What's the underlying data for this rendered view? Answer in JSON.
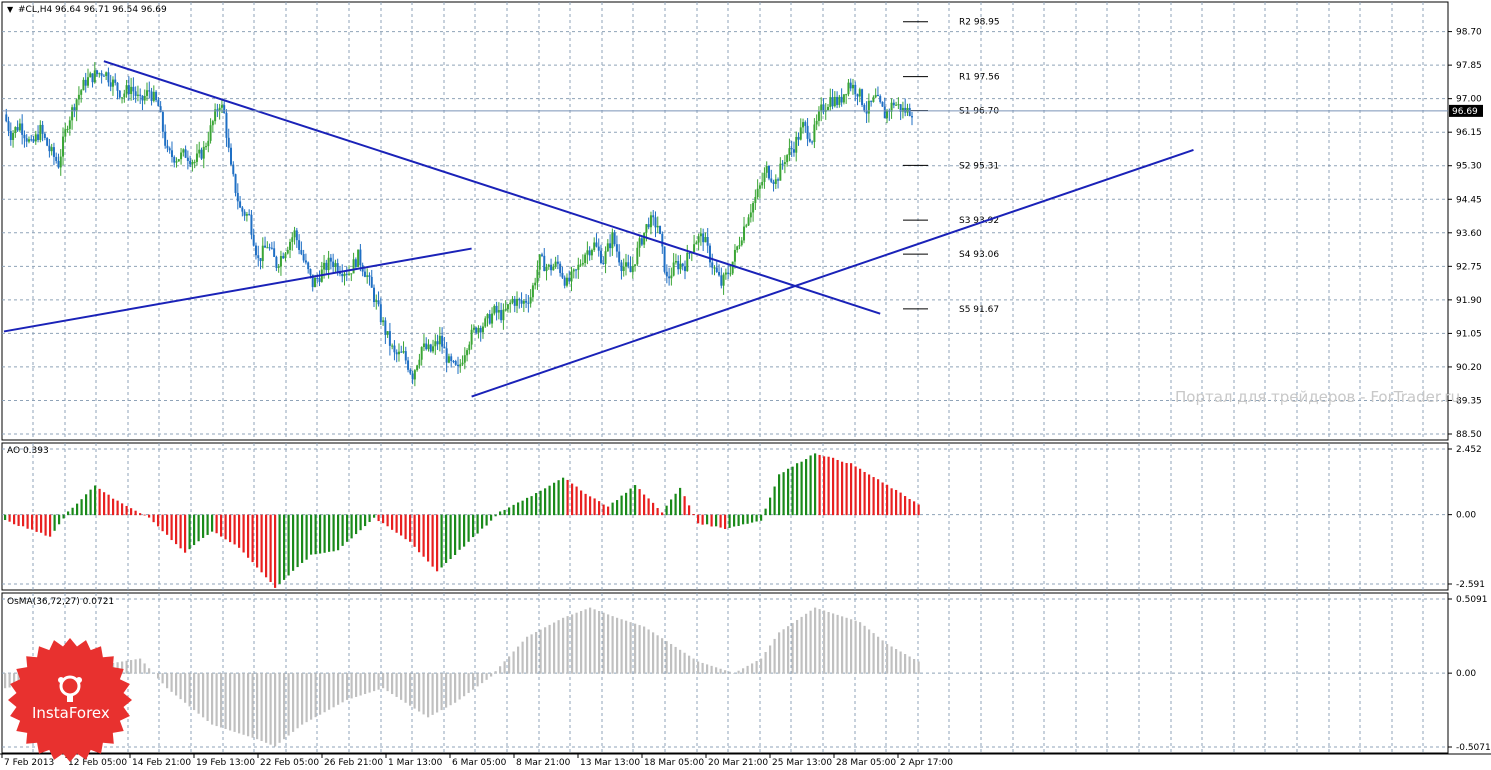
{
  "header": {
    "symbol_line": "#CL,H4  96.64 96.71 96.54 96.69"
  },
  "watermark": "Портал для трейдеров - ForTrader.ru",
  "logo": {
    "text": "InstaForex",
    "color": "#e8312f"
  },
  "colors": {
    "grid": "#8fa3b8",
    "bull": "#3aa535",
    "bear": "#1f6fc4",
    "trendline": "#1a22b8",
    "ao_up": "#1a8a1a",
    "ao_down": "#e82020",
    "osma": "#c0c0c0",
    "price_badge": "#000000"
  },
  "chart_data": [
    {
      "type": "candlestick",
      "title": "#CL,H4",
      "ohlc_header": {
        "open": 96.64,
        "high": 96.71,
        "low": 96.54,
        "close": 96.69
      },
      "current_price_label": "96.69",
      "ylim": [
        88.5,
        99.45
      ],
      "yticks": [
        "98.70",
        "97.85",
        "97.00",
        "96.15",
        "95.30",
        "94.45",
        "93.60",
        "92.75",
        "91.90",
        "91.05",
        "90.20",
        "89.35",
        "88.50"
      ],
      "xticks": [
        "7 Feb 2013",
        "12 Feb 05:00",
        "14 Feb 21:00",
        "19 Feb 13:00",
        "22 Feb 05:00",
        "26 Feb 21:00",
        "1 Mar 13:00",
        "6 Mar 05:00",
        "8 Mar 21:00",
        "13 Mar 13:00",
        "18 Mar 05:00",
        "20 Mar 21:00",
        "25 Mar 13:00",
        "28 Mar 05:00",
        "2 Apr 17:00"
      ],
      "pivot_levels": [
        {
          "label": "R2 98.95",
          "value": 98.95
        },
        {
          "label": "R1 97.56",
          "value": 97.56
        },
        {
          "label": "S1 96.70",
          "value": 96.7
        },
        {
          "label": "S2 95.31",
          "value": 95.31
        },
        {
          "label": "S3 93.92",
          "value": 93.92
        },
        {
          "label": "S4 93.06",
          "value": 93.06
        },
        {
          "label": "S5 91.67",
          "value": 91.67
        }
      ],
      "close_path": [
        [
          0,
          96.6
        ],
        [
          3,
          96.1
        ],
        [
          7,
          96.35
        ],
        [
          12,
          95.8
        ],
        [
          16,
          96.2
        ],
        [
          20,
          95.7
        ],
        [
          24,
          95.35
        ],
        [
          28,
          96.4
        ],
        [
          32,
          97.0
        ],
        [
          36,
          97.45
        ],
        [
          40,
          97.6
        ],
        [
          44,
          97.7
        ],
        [
          48,
          97.4
        ],
        [
          52,
          97.1
        ],
        [
          56,
          97.3
        ],
        [
          60,
          96.9
        ],
        [
          64,
          97.2
        ],
        [
          68,
          96.8
        ],
        [
          72,
          95.6
        ],
        [
          76,
          95.5
        ],
        [
          80,
          95.6
        ],
        [
          84,
          95.4
        ],
        [
          88,
          95.7
        ],
        [
          92,
          96.4
        ],
        [
          95,
          96.9
        ],
        [
          97,
          96.6
        ],
        [
          100,
          95.2
        ],
        [
          104,
          94.2
        ],
        [
          108,
          94.0
        ],
        [
          112,
          92.9
        ],
        [
          116,
          93.3
        ],
        [
          120,
          92.8
        ],
        [
          124,
          93.2
        ],
        [
          128,
          93.6
        ],
        [
          132,
          92.9
        ],
        [
          136,
          92.3
        ],
        [
          140,
          92.6
        ],
        [
          144,
          92.9
        ],
        [
          148,
          92.7
        ],
        [
          152,
          92.6
        ],
        [
          156,
          93.0
        ],
        [
          160,
          92.5
        ],
        [
          164,
          91.8
        ],
        [
          168,
          91.1
        ],
        [
          172,
          90.5
        ],
        [
          176,
          90.5
        ],
        [
          180,
          90.0
        ],
        [
          184,
          90.7
        ],
        [
          188,
          90.6
        ],
        [
          192,
          90.9
        ],
        [
          196,
          90.3
        ],
        [
          200,
          90.1
        ],
        [
          204,
          90.8
        ],
        [
          208,
          91.2
        ],
        [
          212,
          91.3
        ],
        [
          216,
          91.6
        ],
        [
          220,
          91.5
        ],
        [
          224,
          91.9
        ],
        [
          228,
          91.8
        ],
        [
          232,
          92.0
        ],
        [
          236,
          92.9
        ],
        [
          240,
          92.7
        ],
        [
          244,
          92.8
        ],
        [
          248,
          92.3
        ],
        [
          252,
          92.6
        ],
        [
          256,
          93.1
        ],
        [
          260,
          93.3
        ],
        [
          264,
          92.9
        ],
        [
          268,
          93.5
        ],
        [
          272,
          92.8
        ],
        [
          276,
          92.6
        ],
        [
          280,
          93.3
        ],
        [
          284,
          93.9
        ],
        [
          288,
          93.8
        ],
        [
          292,
          92.4
        ],
        [
          296,
          92.8
        ],
        [
          300,
          92.8
        ],
        [
          304,
          93.4
        ],
        [
          308,
          93.5
        ],
        [
          312,
          92.8
        ],
        [
          316,
          92.3
        ],
        [
          320,
          92.7
        ],
        [
          324,
          93.4
        ],
        [
          328,
          94.1
        ],
        [
          332,
          94.6
        ],
        [
          336,
          95.2
        ],
        [
          340,
          94.9
        ],
        [
          344,
          95.5
        ],
        [
          348,
          95.8
        ],
        [
          352,
          96.3
        ],
        [
          356,
          96.0
        ],
        [
          360,
          96.7
        ],
        [
          364,
          97.0
        ],
        [
          368,
          96.9
        ],
        [
          372,
          97.4
        ],
        [
          376,
          97.2
        ],
        [
          380,
          96.7
        ],
        [
          384,
          97.0
        ],
        [
          388,
          96.6
        ],
        [
          392,
          96.9
        ],
        [
          396,
          96.7
        ],
        [
          400,
          96.69
        ]
      ],
      "trendlines": [
        {
          "from": [
            22,
            97.95
          ],
          "to": [
            193,
            91.55
          ]
        },
        {
          "from": [
            0,
            91.1
          ],
          "to": [
            103,
            93.2
          ]
        },
        {
          "from": [
            103,
            89.45
          ],
          "to": [
            262,
            95.7
          ]
        }
      ]
    },
    {
      "type": "bar",
      "title": "AO 0.393",
      "ylim": [
        -2.591,
        2.452
      ],
      "yticks": [
        "2.452",
        "0.00",
        "-2.591"
      ],
      "path": [
        [
          0,
          -0.2
        ],
        [
          10,
          -0.8
        ],
        [
          14,
          0.1
        ],
        [
          20,
          1.1
        ],
        [
          24,
          0.6
        ],
        [
          32,
          -0.1
        ],
        [
          40,
          -1.4
        ],
        [
          46,
          -0.6
        ],
        [
          52,
          -1.2
        ],
        [
          60,
          -2.7
        ],
        [
          68,
          -1.5
        ],
        [
          74,
          -1.3
        ],
        [
          82,
          -0.1
        ],
        [
          90,
          -1.0
        ],
        [
          96,
          -2.1
        ],
        [
          103,
          -1.0
        ],
        [
          110,
          0.1
        ],
        [
          118,
          0.8
        ],
        [
          124,
          1.4
        ],
        [
          128,
          0.9
        ],
        [
          134,
          0.3
        ],
        [
          140,
          1.1
        ],
        [
          146,
          0.1
        ],
        [
          150,
          1.0
        ],
        [
          154,
          -0.3
        ],
        [
          160,
          -0.5
        ],
        [
          168,
          -0.2
        ],
        [
          172,
          1.5
        ],
        [
          180,
          2.3
        ],
        [
          188,
          1.9
        ],
        [
          196,
          1.1
        ],
        [
          203,
          0.4
        ]
      ],
      "colors_by_direction": true
    },
    {
      "type": "bar",
      "title": "OsMA(36,72,27) 0.0721",
      "ylim": [
        -0.5071,
        0.5091
      ],
      "yticks": [
        "0.5091",
        "0.00",
        "-0.5071"
      ],
      "path": [
        [
          0,
          -0.1
        ],
        [
          10,
          -0.05
        ],
        [
          20,
          0.05
        ],
        [
          30,
          0.1
        ],
        [
          36,
          -0.1
        ],
        [
          46,
          -0.35
        ],
        [
          56,
          -0.45
        ],
        [
          60,
          -0.5
        ],
        [
          66,
          -0.35
        ],
        [
          76,
          -0.18
        ],
        [
          84,
          -0.1
        ],
        [
          94,
          -0.3
        ],
        [
          100,
          -0.2
        ],
        [
          108,
          -0.02
        ],
        [
          116,
          0.25
        ],
        [
          124,
          0.38
        ],
        [
          130,
          0.45
        ],
        [
          136,
          0.38
        ],
        [
          142,
          0.32
        ],
        [
          148,
          0.2
        ],
        [
          154,
          0.08
        ],
        [
          162,
          0.0
        ],
        [
          168,
          0.1
        ],
        [
          172,
          0.28
        ],
        [
          180,
          0.45
        ],
        [
          190,
          0.35
        ],
        [
          196,
          0.2
        ],
        [
          203,
          0.08
        ]
      ],
      "colors_by_direction": false
    }
  ]
}
